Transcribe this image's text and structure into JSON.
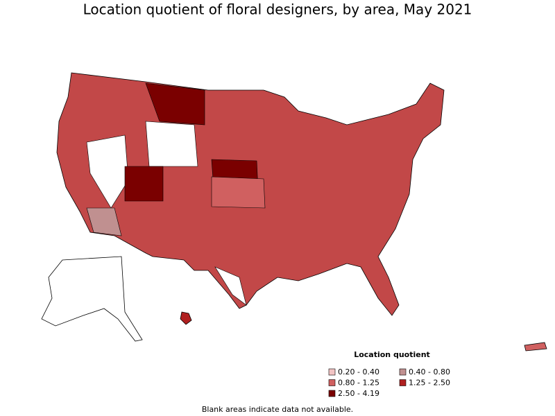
{
  "title": "Location quotient of floral designers, by area, May 2021",
  "legend": {
    "title": "Location quotient",
    "entries": [
      {
        "label": "0.20 - 0.40",
        "color": "#f2c4c4"
      },
      {
        "label": "0.40 - 0.80",
        "color": "#c09090"
      },
      {
        "label": "0.80 - 1.25",
        "color": "#d06060"
      },
      {
        "label": "1.25 - 2.50",
        "color": "#b02020"
      },
      {
        "label": "2.50 - 4.19",
        "color": "#7a0000"
      }
    ]
  },
  "footnote": "Blank areas indicate data not available."
}
